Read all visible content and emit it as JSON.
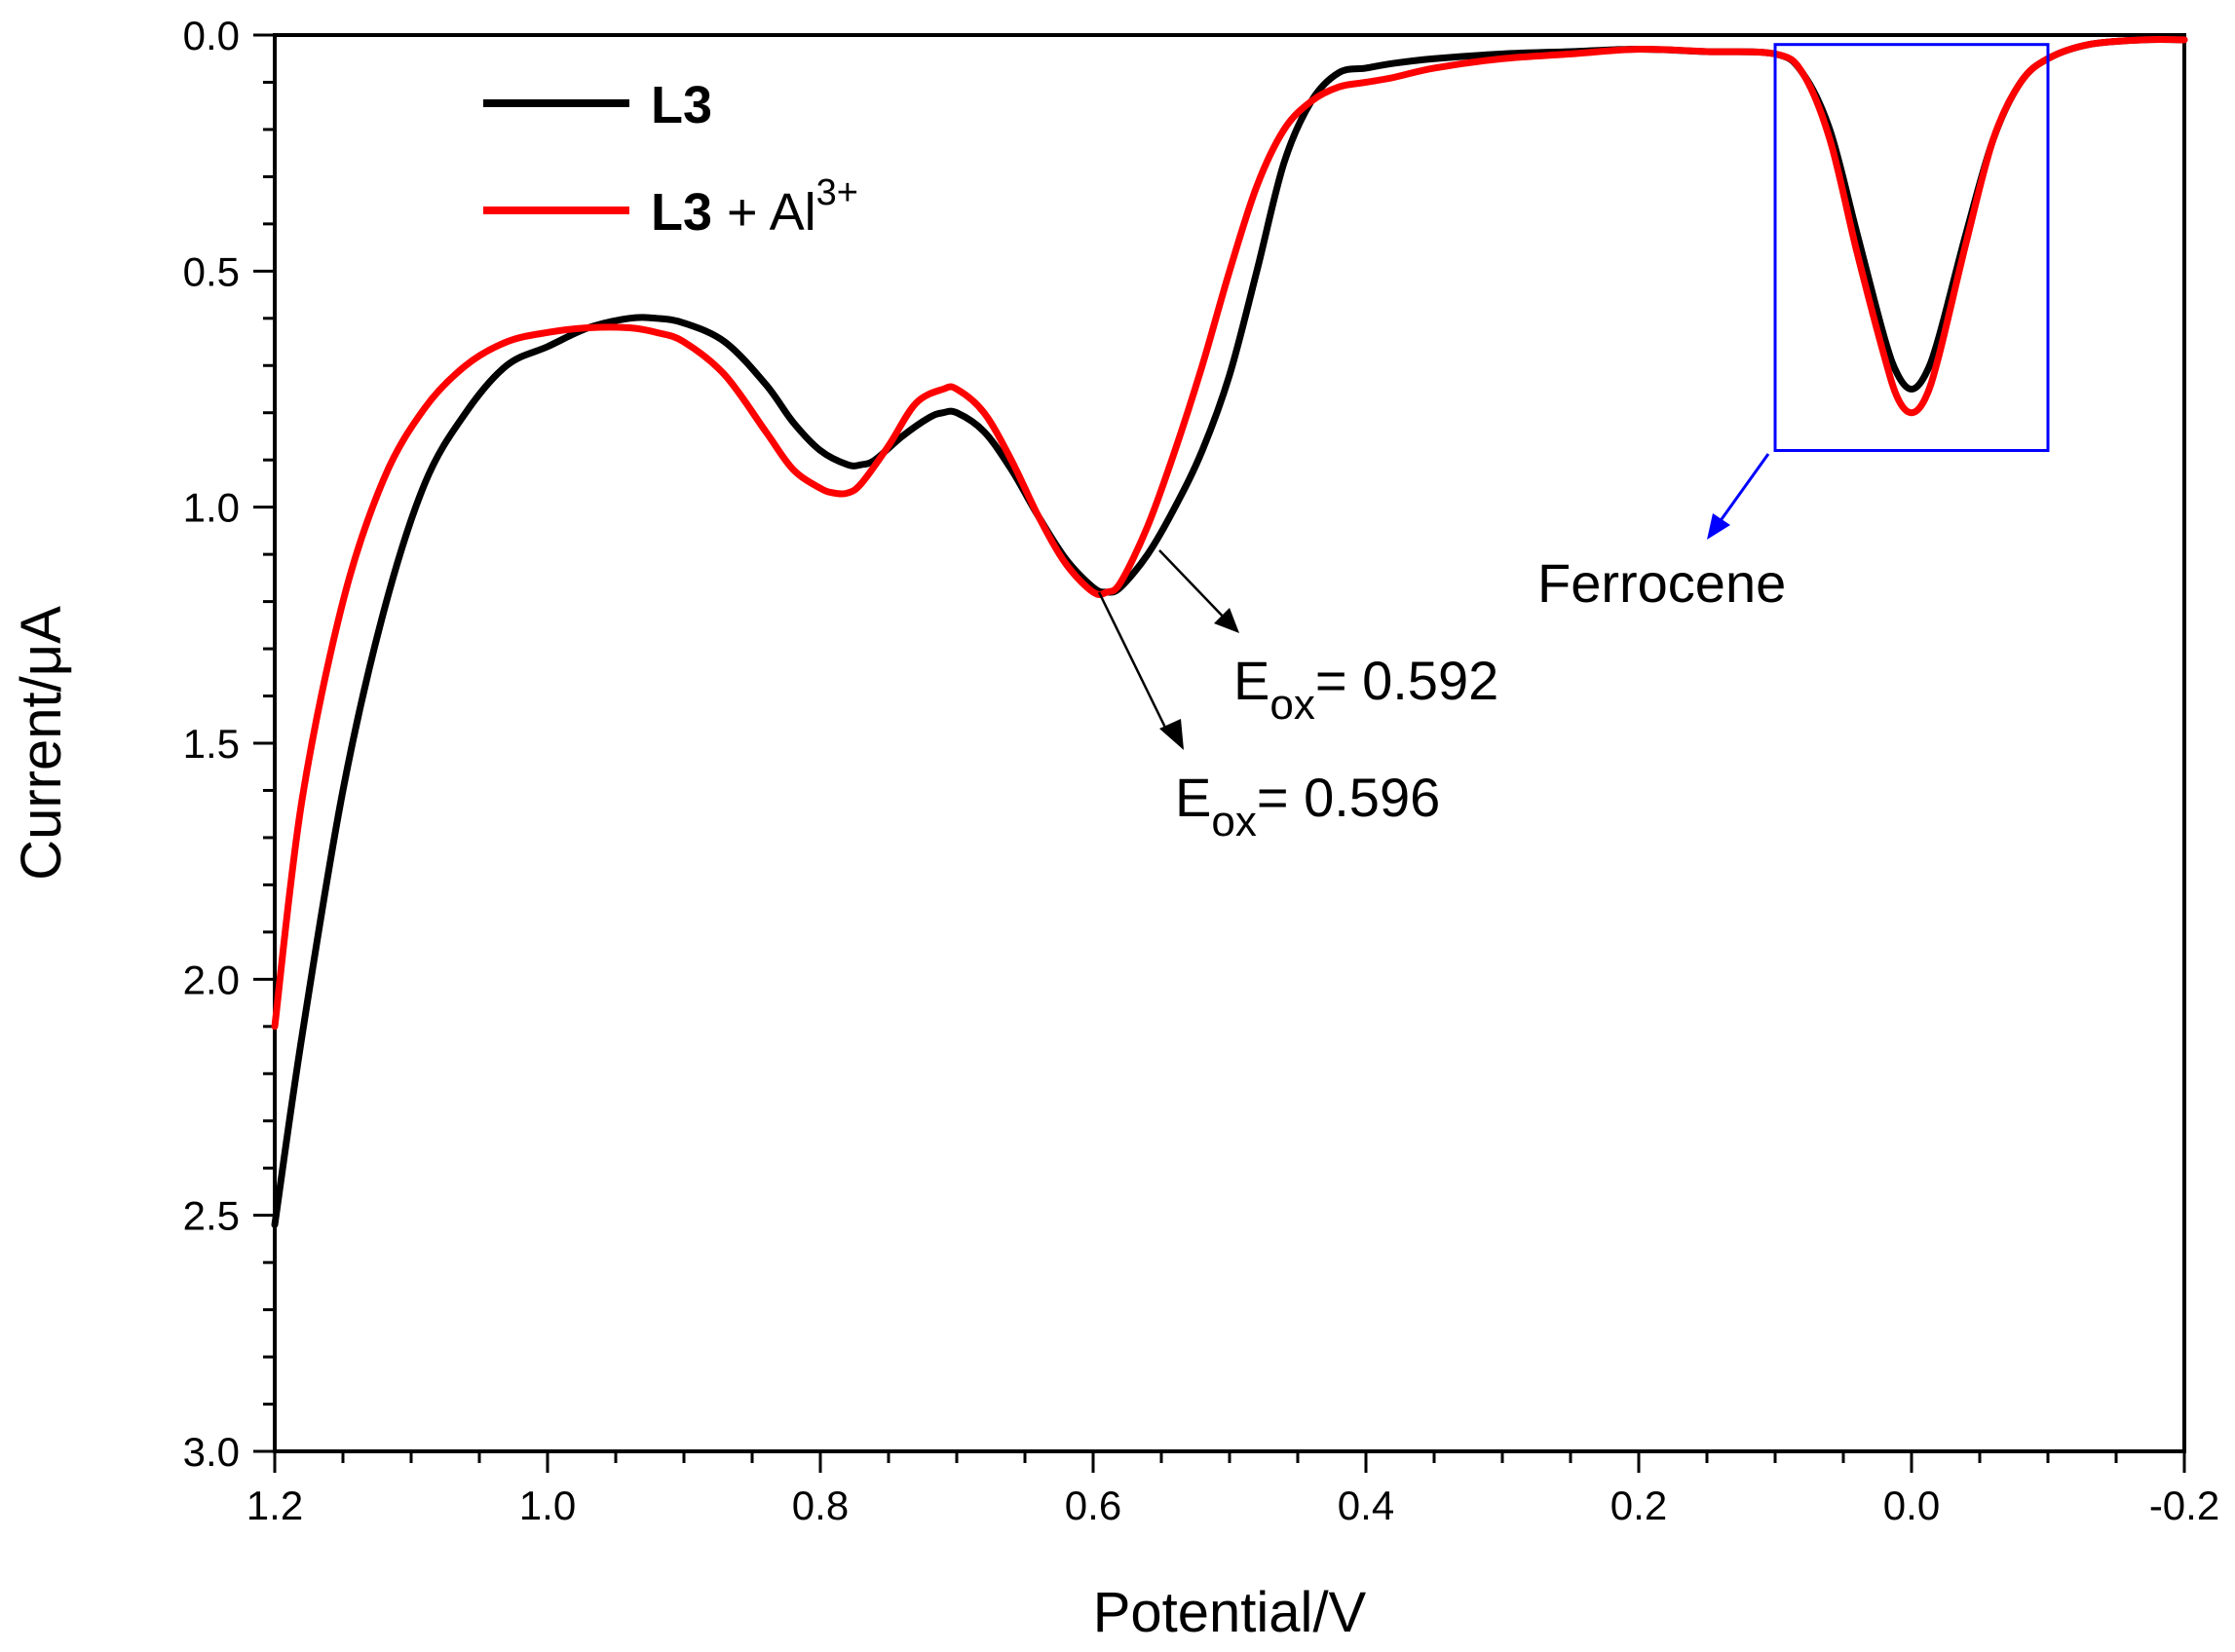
{
  "chart_data": {
    "type": "line",
    "xlabel": "Potential/V",
    "ylabel": "Current/μA",
    "xlim": [
      1.2,
      -0.2
    ],
    "ylim": [
      0.0,
      3.0
    ],
    "x_reversed": true,
    "y_reversed": true,
    "xticks": [
      1.2,
      1.0,
      0.8,
      0.6,
      0.4,
      0.2,
      0.0,
      -0.2
    ],
    "xtick_labels": [
      "1.2",
      "1.0",
      "0.8",
      "0.6",
      "0.4",
      "0.2",
      "0.0",
      "-0.2"
    ],
    "yticks": [
      0.0,
      0.5,
      1.0,
      1.5,
      2.0,
      2.5,
      3.0
    ],
    "ytick_labels": [
      "0.0",
      "0.5",
      "1.0",
      "1.5",
      "2.0",
      "2.5",
      "3.0"
    ],
    "legend_position": "top-left",
    "series": [
      {
        "name": "L3",
        "legend_bold": "L3",
        "legend_rest": "",
        "legend_sup": "",
        "color": "#000000",
        "x": [
          1.2,
          1.18,
          1.15,
          1.12,
          1.09,
          1.06,
          1.03,
          1.0,
          0.97,
          0.94,
          0.92,
          0.9,
          0.87,
          0.84,
          0.82,
          0.8,
          0.78,
          0.77,
          0.76,
          0.74,
          0.72,
          0.71,
          0.7,
          0.68,
          0.66,
          0.64,
          0.62,
          0.6,
          0.59,
          0.58,
          0.56,
          0.54,
          0.52,
          0.5,
          0.48,
          0.46,
          0.44,
          0.42,
          0.4,
          0.38,
          0.35,
          0.3,
          0.25,
          0.2,
          0.15,
          0.1,
          0.08,
          0.06,
          0.04,
          0.02,
          0.01,
          0.0,
          -0.01,
          -0.02,
          -0.04,
          -0.06,
          -0.08,
          -0.1,
          -0.13,
          -0.17,
          -0.2
        ],
        "y": [
          2.52,
          2.12,
          1.6,
          1.22,
          0.95,
          0.8,
          0.7,
          0.66,
          0.62,
          0.6,
          0.6,
          0.61,
          0.65,
          0.74,
          0.82,
          0.88,
          0.91,
          0.91,
          0.9,
          0.85,
          0.81,
          0.8,
          0.8,
          0.84,
          0.92,
          1.02,
          1.11,
          1.17,
          1.18,
          1.17,
          1.1,
          1.0,
          0.88,
          0.72,
          0.5,
          0.27,
          0.14,
          0.08,
          0.07,
          0.06,
          0.05,
          0.04,
          0.035,
          0.03,
          0.035,
          0.04,
          0.08,
          0.2,
          0.42,
          0.64,
          0.72,
          0.75,
          0.72,
          0.64,
          0.42,
          0.22,
          0.1,
          0.05,
          0.02,
          0.01,
          0.01
        ]
      },
      {
        "name": "L3 + Al3+",
        "legend_bold": "L3",
        "legend_rest": " + Al",
        "legend_sup": "3+",
        "color": "#ff0000",
        "x": [
          1.2,
          1.18,
          1.15,
          1.12,
          1.09,
          1.06,
          1.03,
          1.0,
          0.97,
          0.94,
          0.92,
          0.9,
          0.87,
          0.84,
          0.82,
          0.8,
          0.79,
          0.78,
          0.77,
          0.75,
          0.73,
          0.71,
          0.7,
          0.68,
          0.66,
          0.64,
          0.62,
          0.6,
          0.59,
          0.58,
          0.56,
          0.54,
          0.52,
          0.5,
          0.48,
          0.46,
          0.44,
          0.42,
          0.4,
          0.38,
          0.35,
          0.3,
          0.25,
          0.2,
          0.15,
          0.1,
          0.08,
          0.06,
          0.04,
          0.02,
          0.01,
          0.0,
          -0.01,
          -0.02,
          -0.04,
          -0.06,
          -0.08,
          -0.1,
          -0.13,
          -0.17,
          -0.2
        ],
        "y": [
          2.1,
          1.62,
          1.2,
          0.94,
          0.79,
          0.7,
          0.65,
          0.63,
          0.62,
          0.62,
          0.63,
          0.65,
          0.72,
          0.84,
          0.92,
          0.96,
          0.97,
          0.97,
          0.95,
          0.87,
          0.78,
          0.75,
          0.75,
          0.8,
          0.9,
          1.02,
          1.12,
          1.18,
          1.18,
          1.16,
          1.04,
          0.88,
          0.7,
          0.5,
          0.32,
          0.2,
          0.14,
          0.11,
          0.1,
          0.09,
          0.07,
          0.05,
          0.04,
          0.03,
          0.035,
          0.04,
          0.08,
          0.22,
          0.46,
          0.68,
          0.77,
          0.8,
          0.77,
          0.68,
          0.44,
          0.22,
          0.1,
          0.05,
          0.02,
          0.01,
          0.01
        ]
      }
    ],
    "annotations": [
      {
        "name": "eox-0592",
        "main": "E",
        "sub": "ox",
        "value": "= 0.592"
      },
      {
        "name": "eox-0596",
        "main": "E",
        "sub": "ox",
        "value": "= 0.596"
      },
      {
        "name": "ferrocene",
        "text": "Ferrocene",
        "box_color": "#0000ff",
        "box_x_range": [
          0.1,
          -0.1
        ],
        "box_y_range": [
          0.02,
          0.88
        ]
      }
    ]
  }
}
